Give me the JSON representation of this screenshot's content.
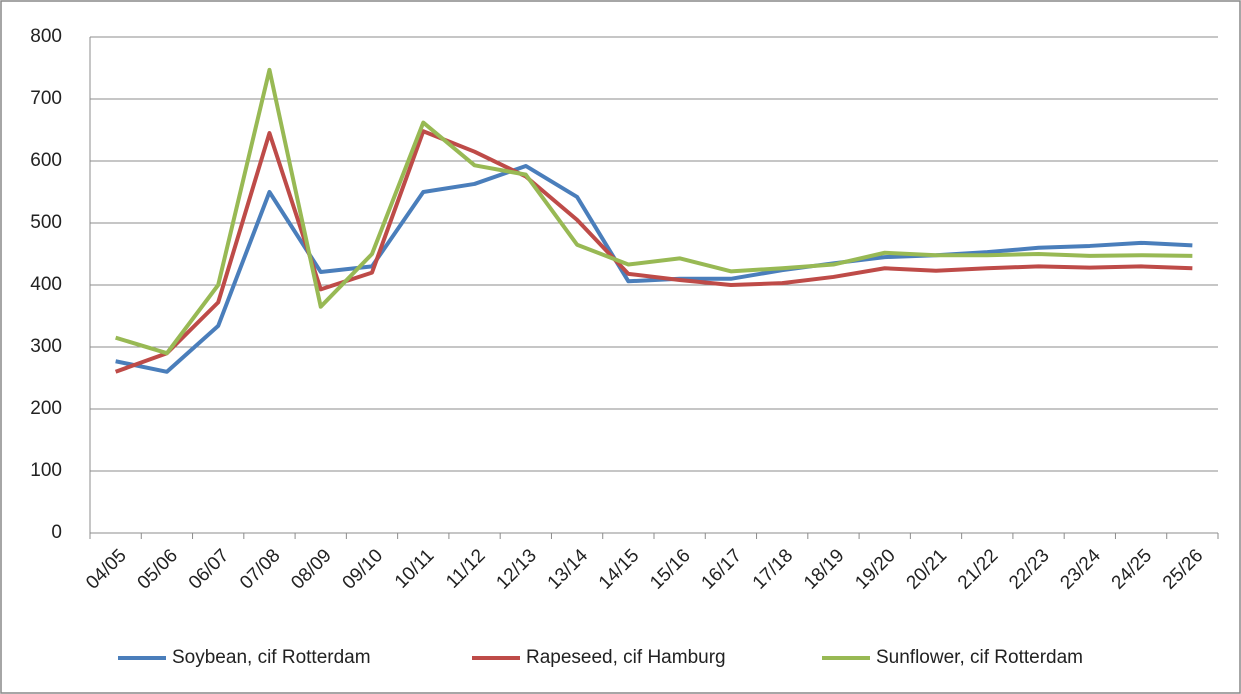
{
  "chart_data": {
    "type": "line",
    "categories": [
      "04/05",
      "05/06",
      "06/07",
      "07/08",
      "08/09",
      "09/10",
      "10/11",
      "11/12",
      "12/13",
      "13/14",
      "14/15",
      "15/16",
      "16/17",
      "17/18",
      "18/19",
      "19/20",
      "20/21",
      "21/22",
      "22/23",
      "23/24",
      "24/25",
      "25/26"
    ],
    "series": [
      {
        "name": "Soybean, cif Rotterdam",
        "color": "#4a7ebb",
        "values": [
          277,
          260,
          334,
          550,
          421,
          430,
          550,
          563,
          592,
          542,
          406,
          410,
          410,
          424,
          435,
          445,
          448,
          453,
          460,
          463,
          468,
          464
        ]
      },
      {
        "name": "Rapeseed, cif Hamburg",
        "color": "#be4b48",
        "values": [
          260,
          290,
          372,
          645,
          393,
          420,
          648,
          615,
          575,
          505,
          418,
          408,
          400,
          403,
          413,
          427,
          423,
          427,
          430,
          428,
          430,
          427
        ]
      },
      {
        "name": "Sunflower, cif Rotterdam",
        "color": "#98b954",
        "values": [
          315,
          290,
          400,
          747,
          365,
          450,
          662,
          593,
          578,
          465,
          433,
          443,
          422,
          427,
          433,
          452,
          448,
          448,
          450,
          447,
          448,
          447
        ]
      }
    ],
    "ylim": [
      0,
      800
    ],
    "yticks": [
      0,
      100,
      200,
      300,
      400,
      500,
      600,
      700,
      800
    ],
    "grid": true,
    "legend": "bottom"
  }
}
